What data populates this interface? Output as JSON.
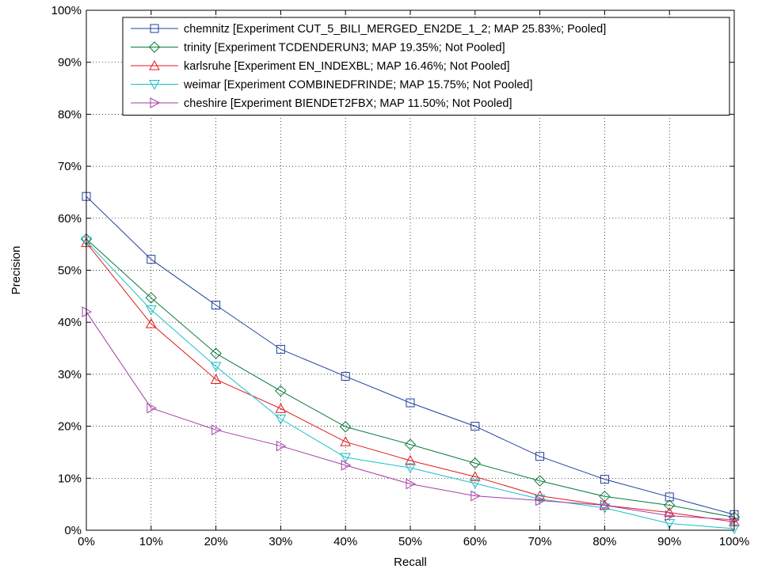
{
  "chart_data": {
    "type": "line",
    "title": "",
    "xlabel": "Recall",
    "ylabel": "Precision",
    "xlim": [
      0,
      100
    ],
    "ylim": [
      0,
      100
    ],
    "grid": true,
    "legend_position": "top-right",
    "x": [
      0,
      10,
      20,
      30,
      40,
      50,
      60,
      70,
      80,
      90,
      100
    ],
    "x_tick_labels": [
      "0%",
      "10%",
      "20%",
      "30%",
      "40%",
      "50%",
      "60%",
      "70%",
      "80%",
      "90%",
      "100%"
    ],
    "y_ticks": [
      0,
      10,
      20,
      30,
      40,
      50,
      60,
      70,
      80,
      90,
      100
    ],
    "y_tick_labels": [
      "0%",
      "10%",
      "20%",
      "30%",
      "40%",
      "50%",
      "60%",
      "70%",
      "80%",
      "90%",
      "100%"
    ],
    "series": [
      {
        "name": "chemnitz [Experiment CUT_5_BILI_MERGED_EN2DE_1_2; MAP 25.83%; Pooled]",
        "color": "#1f3f9f",
        "marker": "square",
        "values": [
          64.2,
          52.1,
          43.3,
          34.8,
          29.6,
          24.5,
          20.0,
          14.2,
          9.8,
          6.4,
          3.0
        ]
      },
      {
        "name": "trinity [Experiment TCDENDERUN3; MAP 19.35%; Not Pooled]",
        "color": "#0a7a3c",
        "marker": "diamond",
        "values": [
          56.0,
          44.7,
          34.0,
          26.8,
          19.9,
          16.5,
          12.9,
          9.5,
          6.5,
          4.8,
          2.5
        ]
      },
      {
        "name": "karlsruhe [Experiment EN_INDEXBL; MAP 16.46%; Not Pooled]",
        "color": "#e41a1c",
        "marker": "triangle-up",
        "values": [
          55.3,
          39.7,
          29.0,
          23.4,
          17.0,
          13.4,
          10.3,
          6.6,
          4.8,
          3.4,
          1.6
        ]
      },
      {
        "name": "weimar [Experiment COMBINEDFRINDE; MAP 15.75%; Not Pooled]",
        "color": "#17c0c8",
        "marker": "triangle-down",
        "values": [
          55.6,
          42.4,
          31.5,
          21.4,
          14.0,
          12.0,
          9.0,
          6.0,
          4.3,
          1.3,
          0.3
        ]
      },
      {
        "name": "cheshire [Experiment BIENDET2FBX; MAP 11.50%; Not Pooled]",
        "color": "#a63ea6",
        "marker": "triangle-right",
        "values": [
          42.0,
          23.5,
          19.3,
          16.2,
          12.5,
          8.9,
          6.6,
          5.7,
          4.8,
          2.8,
          2.0
        ]
      }
    ]
  }
}
